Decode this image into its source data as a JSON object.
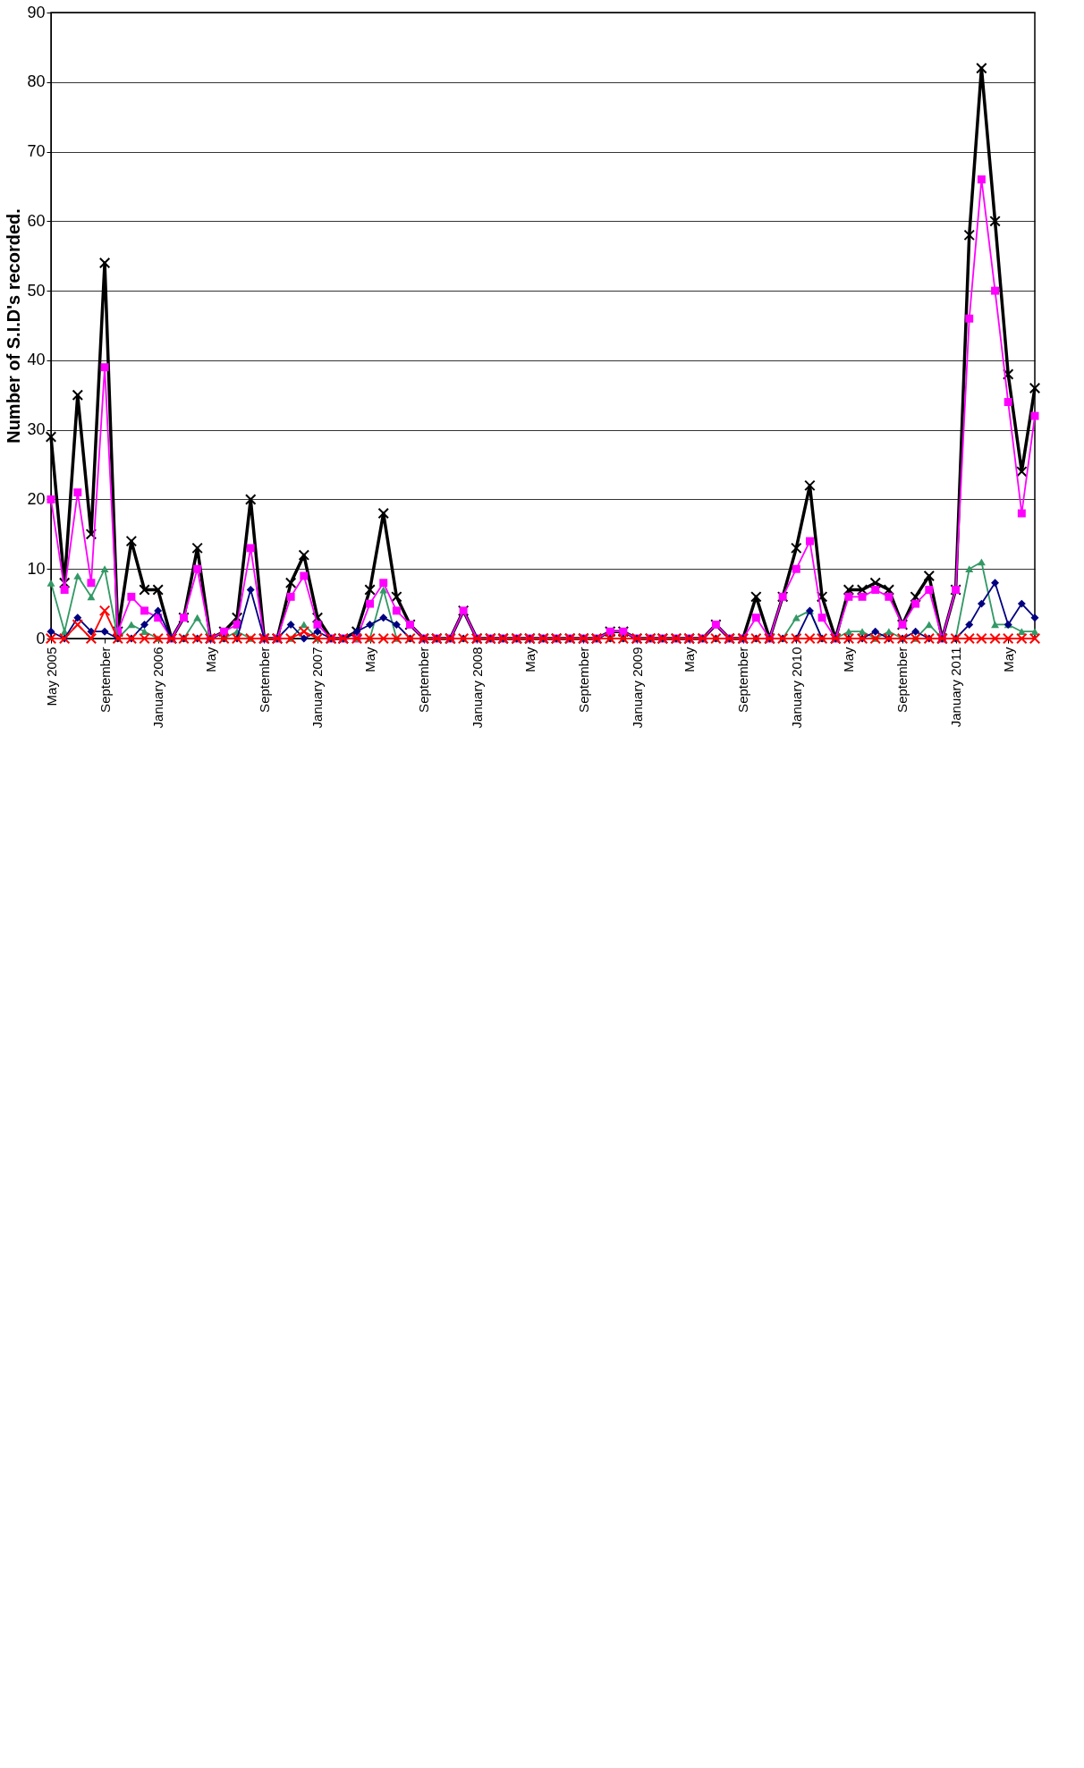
{
  "chart_data": {
    "type": "line",
    "ylabel": "Number of S.I.D's recorded.",
    "x": [
      "2005-05",
      "2005-06",
      "2005-07",
      "2005-08",
      "2005-09",
      "2005-10",
      "2005-11",
      "2005-12",
      "2006-01",
      "2006-02",
      "2006-03",
      "2006-04",
      "2006-05",
      "2006-06",
      "2006-07",
      "2006-08",
      "2006-09",
      "2006-10",
      "2006-11",
      "2006-12",
      "2007-01",
      "2007-02",
      "2007-03",
      "2007-04",
      "2007-05",
      "2007-06",
      "2007-07",
      "2007-08",
      "2007-09",
      "2007-10",
      "2007-11",
      "2007-12",
      "2008-01",
      "2008-02",
      "2008-03",
      "2008-04",
      "2008-05",
      "2008-06",
      "2008-07",
      "2008-08",
      "2008-09",
      "2008-10",
      "2008-11",
      "2008-12",
      "2009-01",
      "2009-02",
      "2009-03",
      "2009-04",
      "2009-05",
      "2009-06",
      "2009-07",
      "2009-08",
      "2009-09",
      "2009-10",
      "2009-11",
      "2009-12",
      "2010-01",
      "2010-02",
      "2010-03",
      "2010-04",
      "2010-05",
      "2010-06",
      "2010-07",
      "2010-08",
      "2010-09",
      "2010-10",
      "2010-11",
      "2010-12",
      "2011-01",
      "2011-02",
      "2011-03",
      "2011-04",
      "2011-05",
      "2011-06",
      "2011-07"
    ],
    "series": [
      {
        "color": "#000000",
        "marker": "cross",
        "values": [
          29,
          8,
          35,
          15,
          54,
          1,
          14,
          7,
          7,
          0,
          3,
          13,
          0,
          1,
          3,
          20,
          0,
          0,
          8,
          12,
          3,
          0,
          0,
          1,
          7,
          18,
          6,
          2,
          0,
          0,
          0,
          4,
          0,
          0,
          0,
          0,
          0,
          0,
          0,
          0,
          0,
          0,
          1,
          1,
          0,
          0,
          0,
          0,
          0,
          0,
          2,
          0,
          0,
          6,
          0,
          6,
          13,
          22,
          6,
          0,
          7,
          7,
          8,
          7,
          2,
          6,
          9,
          0,
          7,
          58,
          82,
          60,
          38,
          24,
          36
        ]
      },
      {
        "color": "#ff00ff",
        "marker": "square",
        "values": [
          20,
          7,
          21,
          8,
          39,
          1,
          6,
          4,
          3,
          0,
          3,
          10,
          0,
          1,
          2,
          13,
          0,
          0,
          6,
          9,
          2,
          0,
          0,
          0,
          5,
          8,
          4,
          2,
          0,
          0,
          0,
          4,
          0,
          0,
          0,
          0,
          0,
          0,
          0,
          0,
          0,
          0,
          1,
          1,
          0,
          0,
          0,
          0,
          0,
          0,
          2,
          0,
          0,
          3,
          0,
          6,
          10,
          14,
          3,
          0,
          6,
          6,
          7,
          6,
          2,
          5,
          7,
          0,
          7,
          46,
          66,
          50,
          34,
          18,
          32
        ]
      },
      {
        "color": "#339966",
        "marker": "triangle",
        "values": [
          8,
          1,
          9,
          6,
          10,
          0,
          2,
          1,
          0,
          0,
          0,
          3,
          0,
          0,
          1,
          0,
          0,
          0,
          0,
          2,
          0,
          0,
          0,
          0,
          0,
          7,
          0,
          0,
          0,
          0,
          0,
          0,
          0,
          0,
          0,
          0,
          0,
          0,
          0,
          0,
          0,
          0,
          0,
          0,
          0,
          0,
          0,
          0,
          0,
          0,
          0,
          0,
          0,
          0,
          0,
          0,
          3,
          4,
          0,
          0,
          1,
          1,
          0,
          1,
          0,
          0,
          2,
          0,
          0,
          10,
          11,
          2,
          2,
          1,
          1
        ]
      },
      {
        "color": "#000080",
        "marker": "diamond",
        "values": [
          1,
          0,
          3,
          1,
          1,
          0,
          0,
          2,
          4,
          0,
          0,
          0,
          0,
          0,
          0,
          7,
          0,
          0,
          2,
          0,
          1,
          0,
          0,
          1,
          2,
          3,
          2,
          0,
          0,
          0,
          0,
          0,
          0,
          0,
          0,
          0,
          0,
          0,
          0,
          0,
          0,
          0,
          0,
          0,
          0,
          0,
          0,
          0,
          0,
          0,
          0,
          0,
          0,
          0,
          0,
          0,
          0,
          4,
          0,
          0,
          0,
          0,
          1,
          0,
          0,
          1,
          0,
          0,
          0,
          2,
          5,
          8,
          2,
          5,
          3
        ]
      },
      {
        "color": "#ff0000",
        "marker": "cross",
        "values": [
          0,
          0,
          2,
          0,
          4,
          0,
          0,
          0,
          0,
          0,
          0,
          0,
          0,
          0,
          0,
          0,
          0,
          0,
          0,
          1,
          0,
          0,
          0,
          0,
          0,
          0,
          0,
          0,
          0,
          0,
          0,
          0,
          0,
          0,
          0,
          0,
          0,
          0,
          0,
          0,
          0,
          0,
          0,
          0,
          0,
          0,
          0,
          0,
          0,
          0,
          0,
          0,
          0,
          0,
          0,
          0,
          0,
          0,
          0,
          0,
          0,
          0,
          0,
          0,
          0,
          0,
          0,
          0,
          0,
          0,
          0,
          0,
          0,
          0,
          0
        ]
      }
    ],
    "xlim": [
      "2005-05",
      "2011-07"
    ],
    "xticks": [
      {
        "value": "2005-05",
        "label": "May 2005"
      },
      {
        "value": "2005-09",
        "label": "September"
      },
      {
        "value": "2006-01",
        "label": "January 2006"
      },
      {
        "value": "2006-05",
        "label": "May"
      },
      {
        "value": "2006-09",
        "label": "September"
      },
      {
        "value": "2007-01",
        "label": "January 2007"
      },
      {
        "value": "2007-05",
        "label": "May"
      },
      {
        "value": "2007-09",
        "label": "September"
      },
      {
        "value": "2008-01",
        "label": "January 2008"
      },
      {
        "value": "2008-05",
        "label": "May"
      },
      {
        "value": "2008-09",
        "label": "September"
      },
      {
        "value": "2009-01",
        "label": "January 2009"
      },
      {
        "value": "2009-05",
        "label": "May"
      },
      {
        "value": "2009-09",
        "label": "September"
      },
      {
        "value": "2010-01",
        "label": "January 2010"
      },
      {
        "value": "2010-05",
        "label": "May"
      },
      {
        "value": "2010-09",
        "label": "September"
      },
      {
        "value": "2011-01",
        "label": "January 2011"
      },
      {
        "value": "2011-05",
        "label": "May"
      }
    ],
    "ylim": [
      0,
      90
    ],
    "yticks": [
      0,
      10,
      20,
      30,
      40,
      50,
      60,
      70,
      80,
      90
    ],
    "grid": "y",
    "line_style": "solid"
  }
}
